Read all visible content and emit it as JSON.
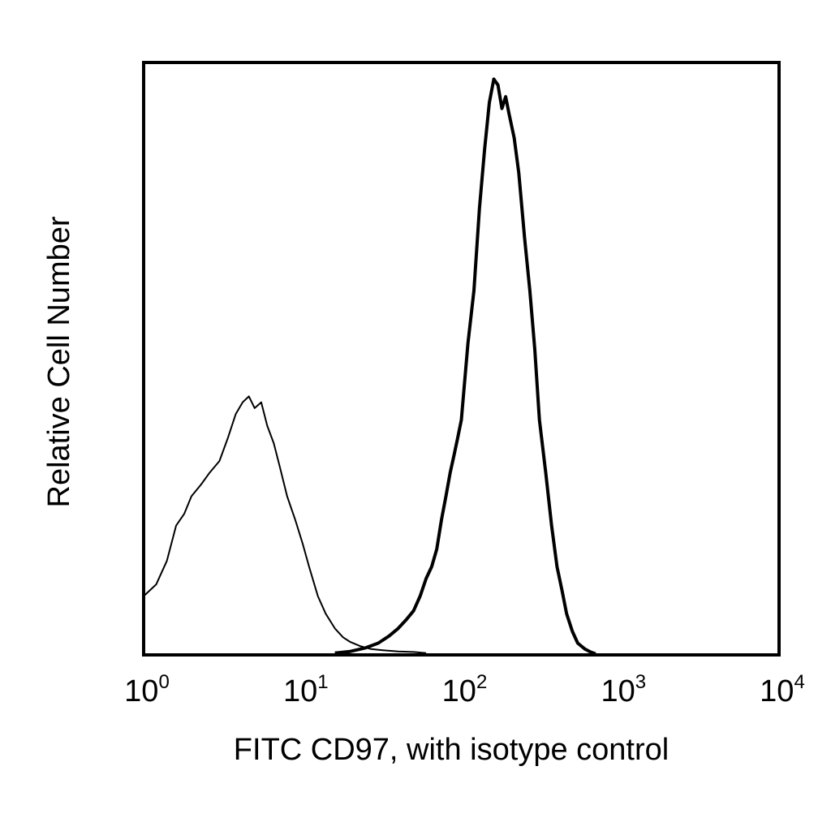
{
  "chart_data": {
    "type": "line",
    "title": "",
    "xlabel": "FITC CD97, with isotype control",
    "ylabel": "Relative Cell Number",
    "x_scale": "log",
    "xlim": [
      1,
      10000
    ],
    "ylim": [
      0,
      1
    ],
    "grid": false,
    "x_ticks": [
      {
        "base": "10",
        "exp": "0"
      },
      {
        "base": "10",
        "exp": "1"
      },
      {
        "base": "10",
        "exp": "2"
      },
      {
        "base": "10",
        "exp": "3"
      },
      {
        "base": "10",
        "exp": "4"
      }
    ],
    "series": [
      {
        "color": "#000000",
        "line_weight": "thin",
        "x": [
          1.0,
          1.2,
          1.4,
          1.6,
          1.8,
          2.0,
          2.3,
          2.6,
          3.0,
          3.4,
          3.8,
          4.2,
          4.6,
          5.0,
          5.5,
          6.0,
          6.6,
          7.2,
          8.0,
          9.0,
          10.0,
          11.0,
          12.5,
          14.0,
          16.0,
          18.0,
          20.0,
          23.0,
          27.0,
          32.0,
          40.0,
          50.0,
          60.0
        ],
        "y": [
          0.1,
          0.12,
          0.16,
          0.22,
          0.24,
          0.27,
          0.29,
          0.31,
          0.33,
          0.37,
          0.41,
          0.43,
          0.44,
          0.42,
          0.43,
          0.39,
          0.36,
          0.32,
          0.27,
          0.23,
          0.19,
          0.15,
          0.1,
          0.07,
          0.045,
          0.03,
          0.022,
          0.015,
          0.01,
          0.008,
          0.006,
          0.005,
          0.003
        ]
      },
      {
        "color": "#000000",
        "line_weight": "thick",
        "x": [
          16,
          20,
          25,
          30,
          35,
          40,
          45,
          50,
          55,
          60,
          65,
          70,
          75,
          80,
          85,
          90,
          95,
          100,
          110,
          120,
          130,
          140,
          150,
          160,
          170,
          180,
          190,
          200,
          215,
          230,
          250,
          270,
          290,
          310,
          340,
          370,
          400,
          430,
          460,
          500,
          540,
          600,
          650,
          700
        ],
        "y": [
          0.003,
          0.006,
          0.012,
          0.02,
          0.032,
          0.045,
          0.06,
          0.075,
          0.1,
          0.13,
          0.15,
          0.18,
          0.23,
          0.27,
          0.31,
          0.34,
          0.37,
          0.4,
          0.53,
          0.62,
          0.76,
          0.86,
          0.94,
          0.98,
          0.97,
          0.93,
          0.95,
          0.92,
          0.88,
          0.82,
          0.71,
          0.62,
          0.52,
          0.4,
          0.31,
          0.22,
          0.15,
          0.11,
          0.07,
          0.04,
          0.02,
          0.01,
          0.005,
          0.002
        ]
      }
    ]
  }
}
